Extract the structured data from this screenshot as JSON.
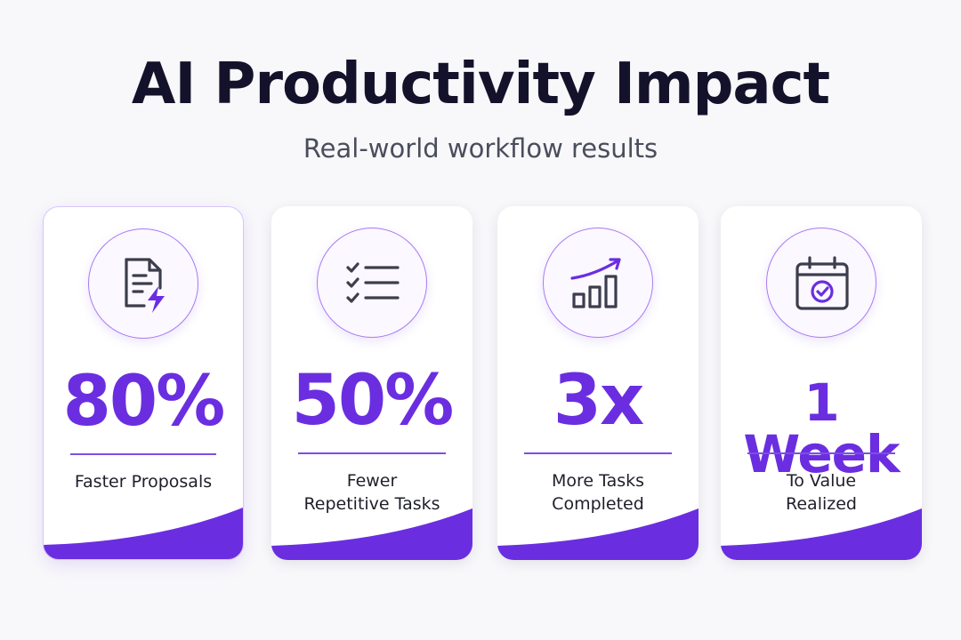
{
  "title": "AI Productivity Impact",
  "subtitle": "Real-world workflow results",
  "accent_color": "#6a2ee0",
  "cards": [
    {
      "icon": "document-lightning-icon",
      "metric": "80%",
      "label_lines": [
        "Faster Proposals"
      ]
    },
    {
      "icon": "checklist-icon",
      "metric": "50%",
      "label_lines": [
        "Fewer",
        "Repetitive Tasks"
      ]
    },
    {
      "icon": "growth-chart-icon",
      "metric": "3x",
      "label_lines": [
        "More Tasks",
        "Completed"
      ]
    },
    {
      "icon": "calendar-check-icon",
      "metric": "1 Week",
      "label_lines": [
        "To Value",
        "Realized"
      ]
    }
  ]
}
